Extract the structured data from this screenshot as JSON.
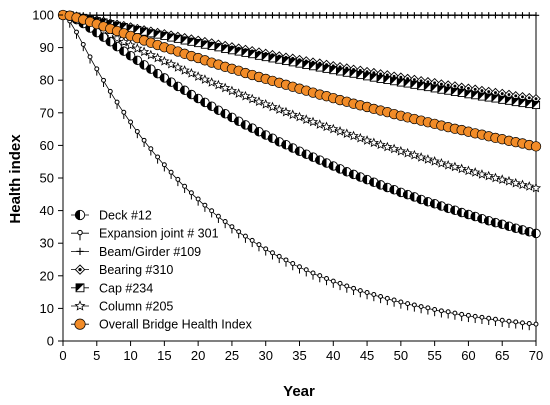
{
  "chart_data": {
    "type": "line",
    "xlabel": "Year",
    "ylabel": "Health index",
    "xlim": [
      0,
      70
    ],
    "ylim": [
      0,
      100
    ],
    "xticks": [
      0,
      5,
      10,
      15,
      20,
      25,
      30,
      35,
      40,
      45,
      50,
      55,
      60,
      65,
      70
    ],
    "yticks": [
      0,
      10,
      20,
      30,
      40,
      50,
      60,
      70,
      80,
      90,
      100
    ],
    "grid": false,
    "legend_position": "bottom-left",
    "x": [
      0,
      1,
      2,
      3,
      4,
      5,
      6,
      7,
      8,
      9,
      10,
      11,
      12,
      13,
      14,
      15,
      16,
      17,
      18,
      19,
      20,
      21,
      22,
      23,
      24,
      25,
      26,
      27,
      28,
      29,
      30,
      31,
      32,
      33,
      34,
      35,
      36,
      37,
      38,
      39,
      40,
      41,
      42,
      43,
      44,
      45,
      46,
      47,
      48,
      49,
      50,
      51,
      52,
      53,
      54,
      55,
      56,
      57,
      58,
      59,
      60,
      61,
      62,
      63,
      64,
      65,
      66,
      67,
      68,
      69,
      70
    ],
    "series": [
      {
        "name": "Deck #12",
        "marker": "half-filled-circle",
        "color": "#000000",
        "values": [
          100.0,
          99.6,
          98.6,
          97.4,
          96.0,
          94.6,
          93.2,
          91.8,
          90.3,
          88.9,
          87.5,
          86.1,
          84.7,
          83.4,
          82.0,
          80.7,
          79.4,
          78.1,
          76.9,
          75.6,
          74.4,
          73.2,
          72.0,
          70.8,
          69.7,
          68.6,
          67.4,
          66.3,
          65.3,
          64.2,
          63.2,
          62.2,
          61.1,
          60.2,
          59.2,
          58.2,
          57.3,
          56.4,
          55.5,
          54.6,
          53.7,
          52.8,
          51.9,
          51.1,
          50.3,
          49.5,
          48.7,
          47.9,
          47.1,
          46.4,
          45.6,
          44.9,
          44.2,
          43.4,
          42.7,
          42.1,
          41.4,
          40.7,
          40.1,
          39.4,
          38.8,
          38.2,
          37.5,
          36.9,
          36.3,
          35.8,
          35.2,
          34.6,
          34.1,
          33.5,
          33.0
        ]
      },
      {
        "name": "Expansion joint # 301",
        "marker": "pin",
        "color": "#000000",
        "values": [
          100.0,
          98.0,
          94.6,
          90.8,
          87.0,
          83.3,
          79.8,
          76.4,
          73.1,
          70.0,
          67.0,
          64.1,
          61.4,
          58.8,
          56.3,
          53.9,
          51.6,
          49.4,
          47.3,
          45.3,
          43.4,
          41.5,
          39.8,
          38.1,
          36.5,
          34.9,
          33.4,
          32.0,
          30.7,
          29.4,
          28.1,
          26.9,
          25.8,
          24.7,
          23.6,
          22.6,
          21.7,
          20.7,
          19.9,
          19.0,
          18.2,
          17.5,
          16.7,
          16.0,
          15.3,
          14.7,
          14.1,
          13.5,
          12.9,
          12.4,
          11.8,
          11.3,
          10.9,
          10.4,
          10.0,
          9.5,
          9.1,
          8.8,
          8.4,
          8.0,
          7.7,
          7.4,
          7.1,
          6.8,
          6.5,
          6.2,
          5.9,
          5.7,
          5.4,
          5.2,
          5.0
        ]
      },
      {
        "name": "Beam/Girder #109",
        "marker": "cross",
        "color": "#000000",
        "values": [
          100.0,
          100.0,
          99.9,
          99.9,
          99.9,
          99.9,
          99.9,
          99.9,
          99.9,
          99.9,
          99.9,
          99.9,
          99.9,
          99.9,
          99.9,
          99.9,
          99.9,
          99.9,
          99.9,
          99.9,
          99.9,
          99.9,
          99.9,
          99.9,
          99.9,
          99.9,
          99.9,
          99.9,
          99.9,
          99.9,
          99.9,
          99.9,
          99.9,
          99.9,
          99.9,
          99.9,
          99.9,
          99.9,
          99.9,
          99.9,
          99.9,
          99.9,
          99.9,
          99.9,
          99.9,
          99.9,
          99.9,
          99.9,
          99.9,
          99.9,
          99.9,
          99.9,
          99.9,
          99.9,
          99.9,
          99.9,
          99.9,
          99.9,
          99.9,
          99.9,
          99.9,
          99.9,
          99.9,
          99.9,
          99.9,
          99.9,
          99.9,
          99.9,
          99.9,
          99.9,
          99.9
        ]
      },
      {
        "name": "Bearing #310",
        "marker": "dot-diamond",
        "color": "#000000",
        "values": [
          100.0,
          99.9,
          99.6,
          99.2,
          98.8,
          98.4,
          98.0,
          97.5,
          97.1,
          96.7,
          96.3,
          95.8,
          95.4,
          95.0,
          94.6,
          94.2,
          93.8,
          93.4,
          93.0,
          92.6,
          92.2,
          91.8,
          91.4,
          91.0,
          90.6,
          90.2,
          89.8,
          89.4,
          89.0,
          88.6,
          88.2,
          87.8,
          87.4,
          87.0,
          86.7,
          86.3,
          85.9,
          85.5,
          85.2,
          84.8,
          84.4,
          84.1,
          83.7,
          83.3,
          83.0,
          82.6,
          82.3,
          81.9,
          81.6,
          81.2,
          80.9,
          80.5,
          80.2,
          79.8,
          79.5,
          79.2,
          78.8,
          78.5,
          78.2,
          77.8,
          77.5,
          77.2,
          76.8,
          76.5,
          76.2,
          75.9,
          75.6,
          75.2,
          74.9,
          74.6,
          74.3
        ]
      },
      {
        "name": "Cap #234",
        "marker": "half-filled-square",
        "color": "#000000",
        "values": [
          100.0,
          99.9,
          99.5,
          99.1,
          98.6,
          98.1,
          97.7,
          97.2,
          96.7,
          96.3,
          95.8,
          95.4,
          94.9,
          94.4,
          94.0,
          93.6,
          93.1,
          92.7,
          92.2,
          91.8,
          91.4,
          90.9,
          90.5,
          90.1,
          89.6,
          89.2,
          88.8,
          88.4,
          88.0,
          87.5,
          87.1,
          86.7,
          86.3,
          85.9,
          85.5,
          85.1,
          84.7,
          84.3,
          83.9,
          83.5,
          83.1,
          82.7,
          82.3,
          82.0,
          81.6,
          81.2,
          80.8,
          80.4,
          80.1,
          79.7,
          79.3,
          79.0,
          78.6,
          78.2,
          77.9,
          77.5,
          77.1,
          76.8,
          76.4,
          76.1,
          75.7,
          75.4,
          75.0,
          74.7,
          74.4,
          74.0,
          73.7,
          73.3,
          73.0,
          72.7,
          72.4
        ]
      },
      {
        "name": "Column #205",
        "marker": "star",
        "color": "#000000",
        "values": [
          100.0,
          99.7,
          98.9,
          98.0,
          96.9,
          95.9,
          94.8,
          93.8,
          92.8,
          91.7,
          90.7,
          89.7,
          88.7,
          87.7,
          86.8,
          85.8,
          84.9,
          83.9,
          83.0,
          82.1,
          81.1,
          80.2,
          79.3,
          78.5,
          77.6,
          76.7,
          75.9,
          75.1,
          74.2,
          73.4,
          72.6,
          71.8,
          71.0,
          70.2,
          69.4,
          68.7,
          67.9,
          67.2,
          66.4,
          65.7,
          65.0,
          64.3,
          63.6,
          62.9,
          62.2,
          61.5,
          60.8,
          60.2,
          59.5,
          58.9,
          58.2,
          57.6,
          57.0,
          56.3,
          55.7,
          55.1,
          54.5,
          53.9,
          53.4,
          52.8,
          52.2,
          51.7,
          51.1,
          50.6,
          50.0,
          49.5,
          49.0,
          48.4,
          47.9,
          47.4,
          46.9
        ]
      },
      {
        "name": "Overall Bridge Health Index",
        "marker": "circle",
        "color": "#F28C28",
        "values": [
          100.0,
          99.8,
          99.2,
          98.6,
          97.9,
          97.2,
          96.5,
          95.8,
          95.1,
          94.4,
          93.6,
          92.9,
          92.2,
          91.5,
          90.8,
          90.1,
          89.5,
          88.8,
          88.1,
          87.4,
          86.8,
          86.1,
          85.4,
          84.8,
          84.1,
          83.5,
          82.9,
          82.2,
          81.6,
          81.0,
          80.4,
          79.8,
          79.2,
          78.6,
          78.0,
          77.4,
          76.8,
          76.2,
          75.6,
          75.1,
          74.5,
          73.9,
          73.4,
          72.8,
          72.3,
          71.8,
          71.2,
          70.7,
          70.2,
          69.6,
          69.1,
          68.6,
          68.1,
          67.6,
          67.1,
          66.6,
          66.1,
          65.6,
          65.1,
          64.7,
          64.2,
          63.7,
          63.3,
          62.8,
          62.3,
          61.9,
          61.4,
          61.0,
          60.6,
          60.1,
          59.7
        ]
      }
    ]
  }
}
